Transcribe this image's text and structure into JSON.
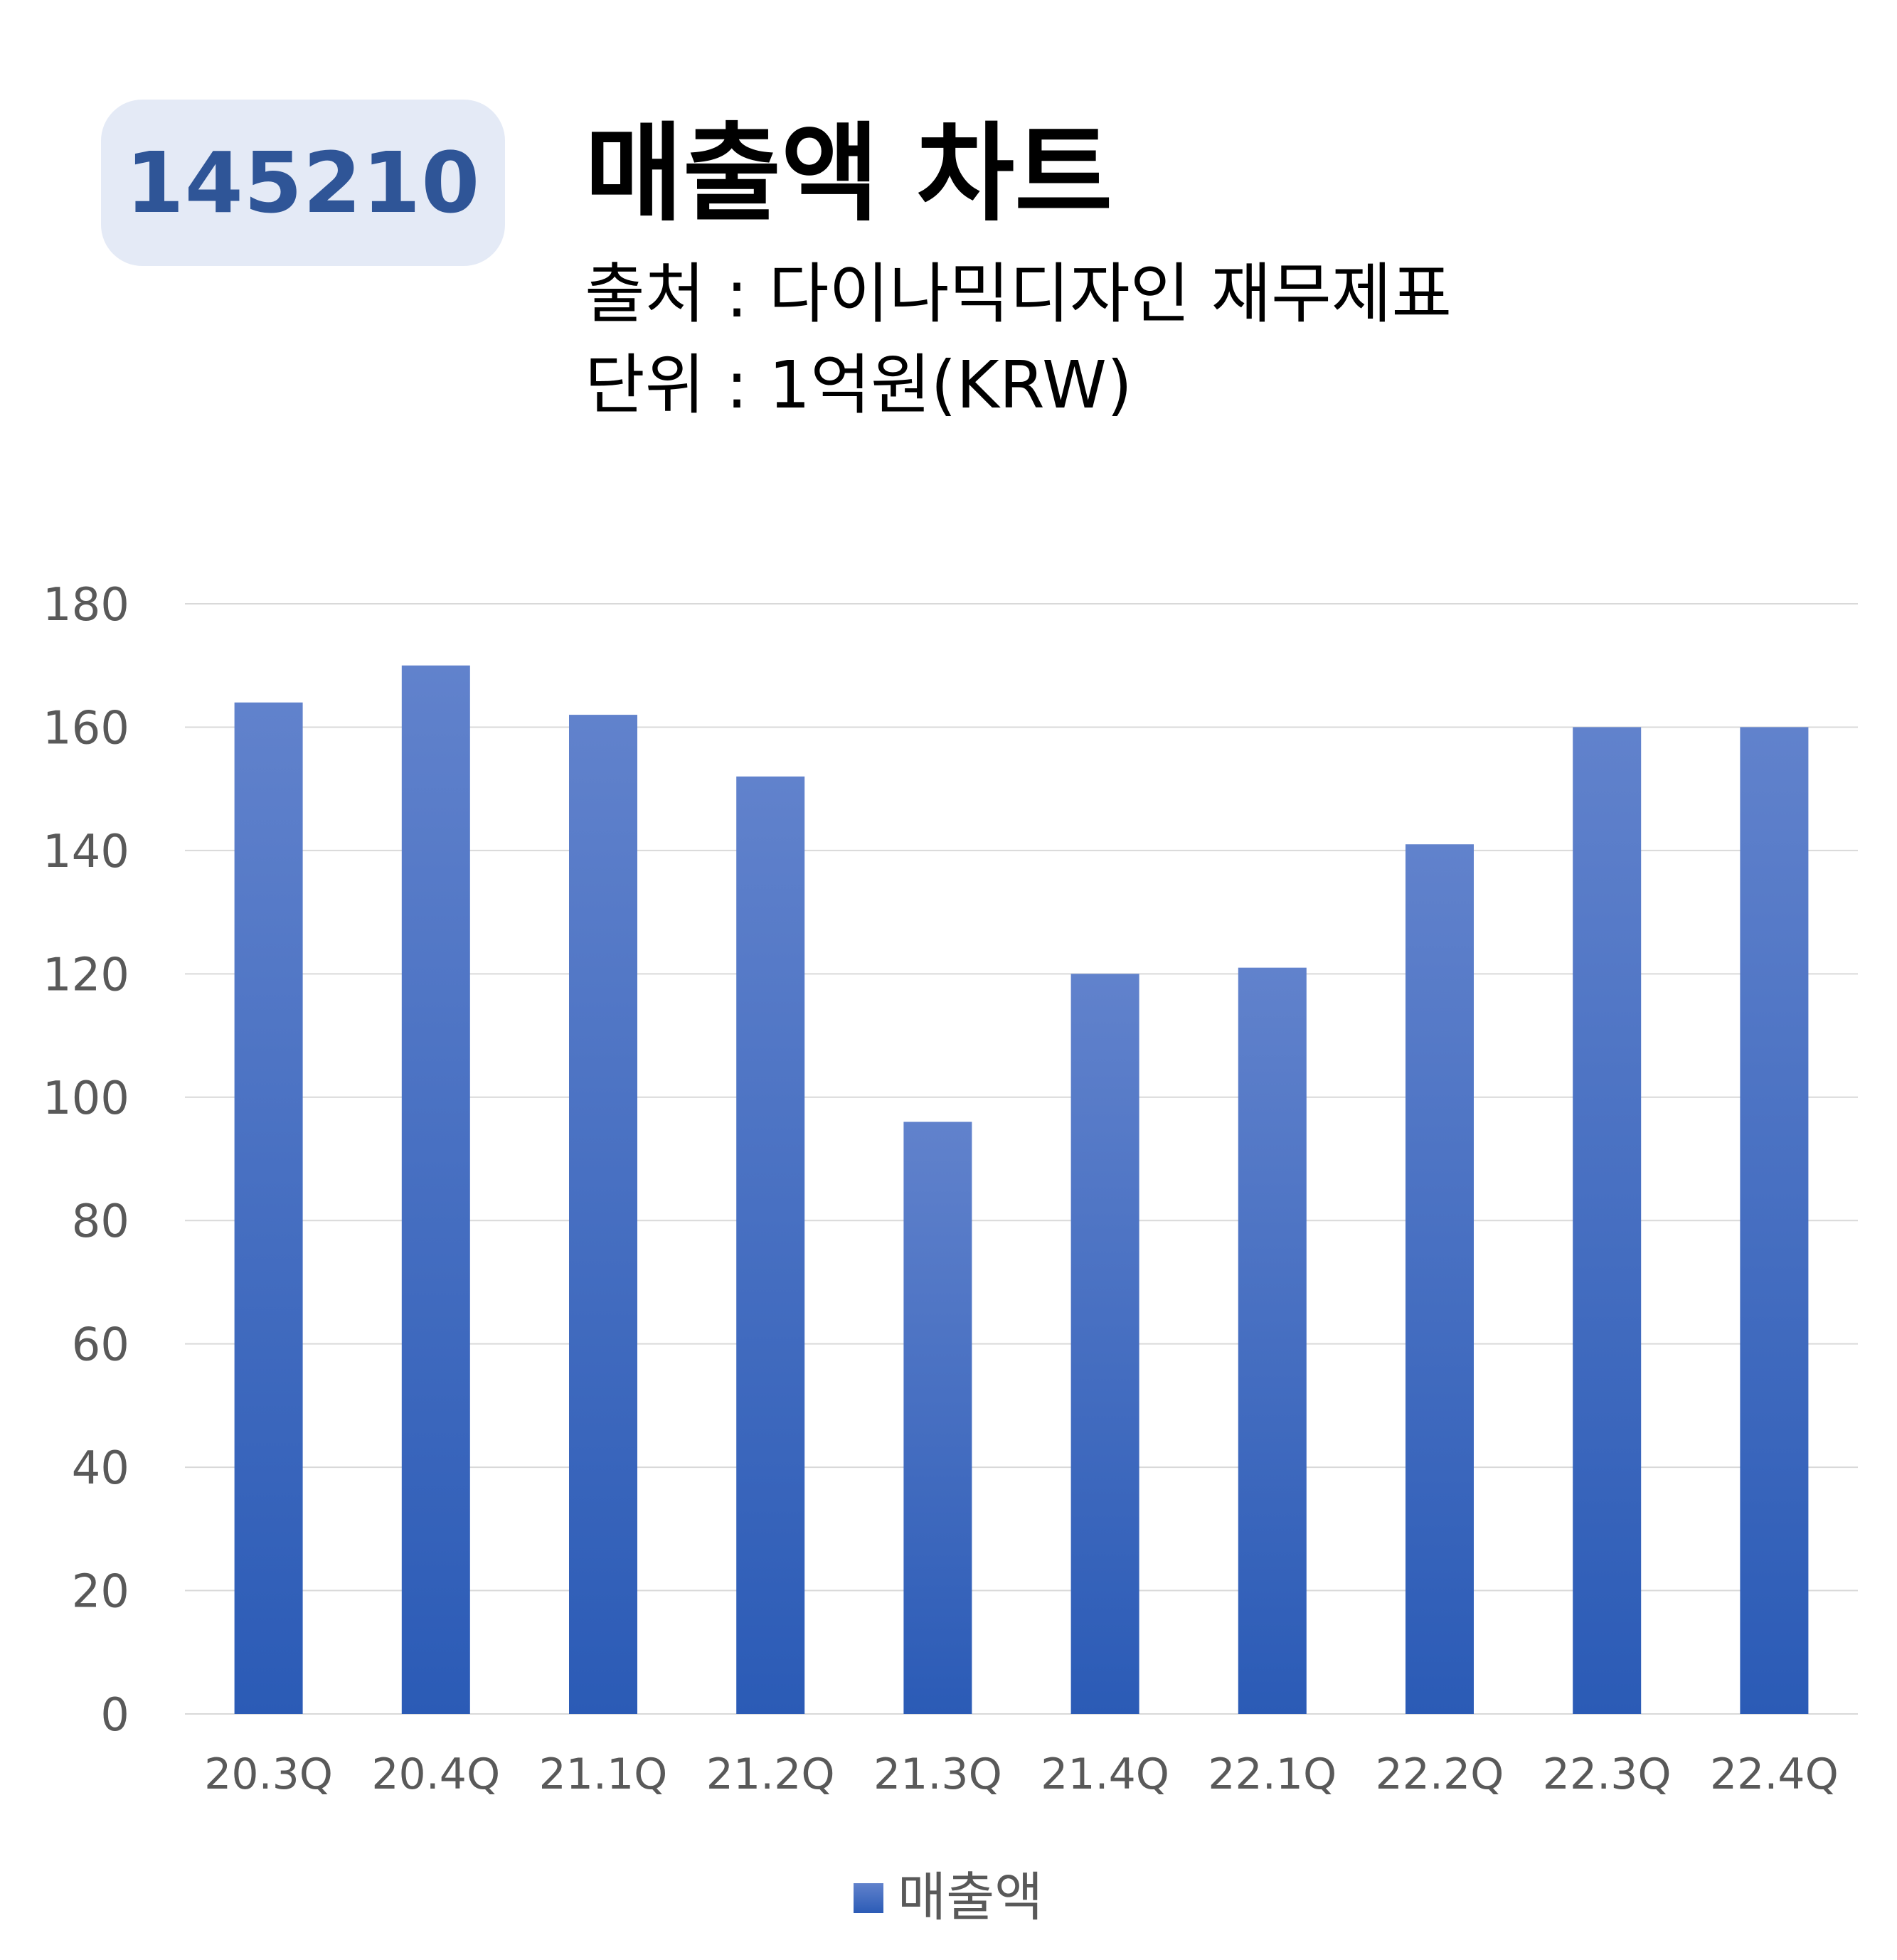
{
  "badge": {
    "code": "145210"
  },
  "header": {
    "title": "매출액 차트",
    "source": "출처 : 다이나믹디자인 재무제표",
    "unit": "단위 : 1억원(KRW)"
  },
  "chart_data": {
    "type": "bar",
    "categories": [
      "20.3Q",
      "20.4Q",
      "21.1Q",
      "21.2Q",
      "21.3Q",
      "21.4Q",
      "22.1Q",
      "22.2Q",
      "22.3Q",
      "22.4Q"
    ],
    "series": [
      {
        "name": "매출액",
        "values": [
          164,
          170,
          162,
          152,
          96,
          120,
          121,
          141,
          160,
          160
        ]
      }
    ],
    "ylim": [
      0,
      180
    ],
    "yticks": [
      0,
      20,
      40,
      60,
      80,
      100,
      120,
      140,
      160,
      180
    ],
    "grid": true,
    "legend_position": "bottom",
    "colors": {
      "bar_top": "#6182cc",
      "bar_bottom": "#2b5bb6",
      "grid": "#d9d9d9",
      "axis_text": "#595959"
    }
  }
}
